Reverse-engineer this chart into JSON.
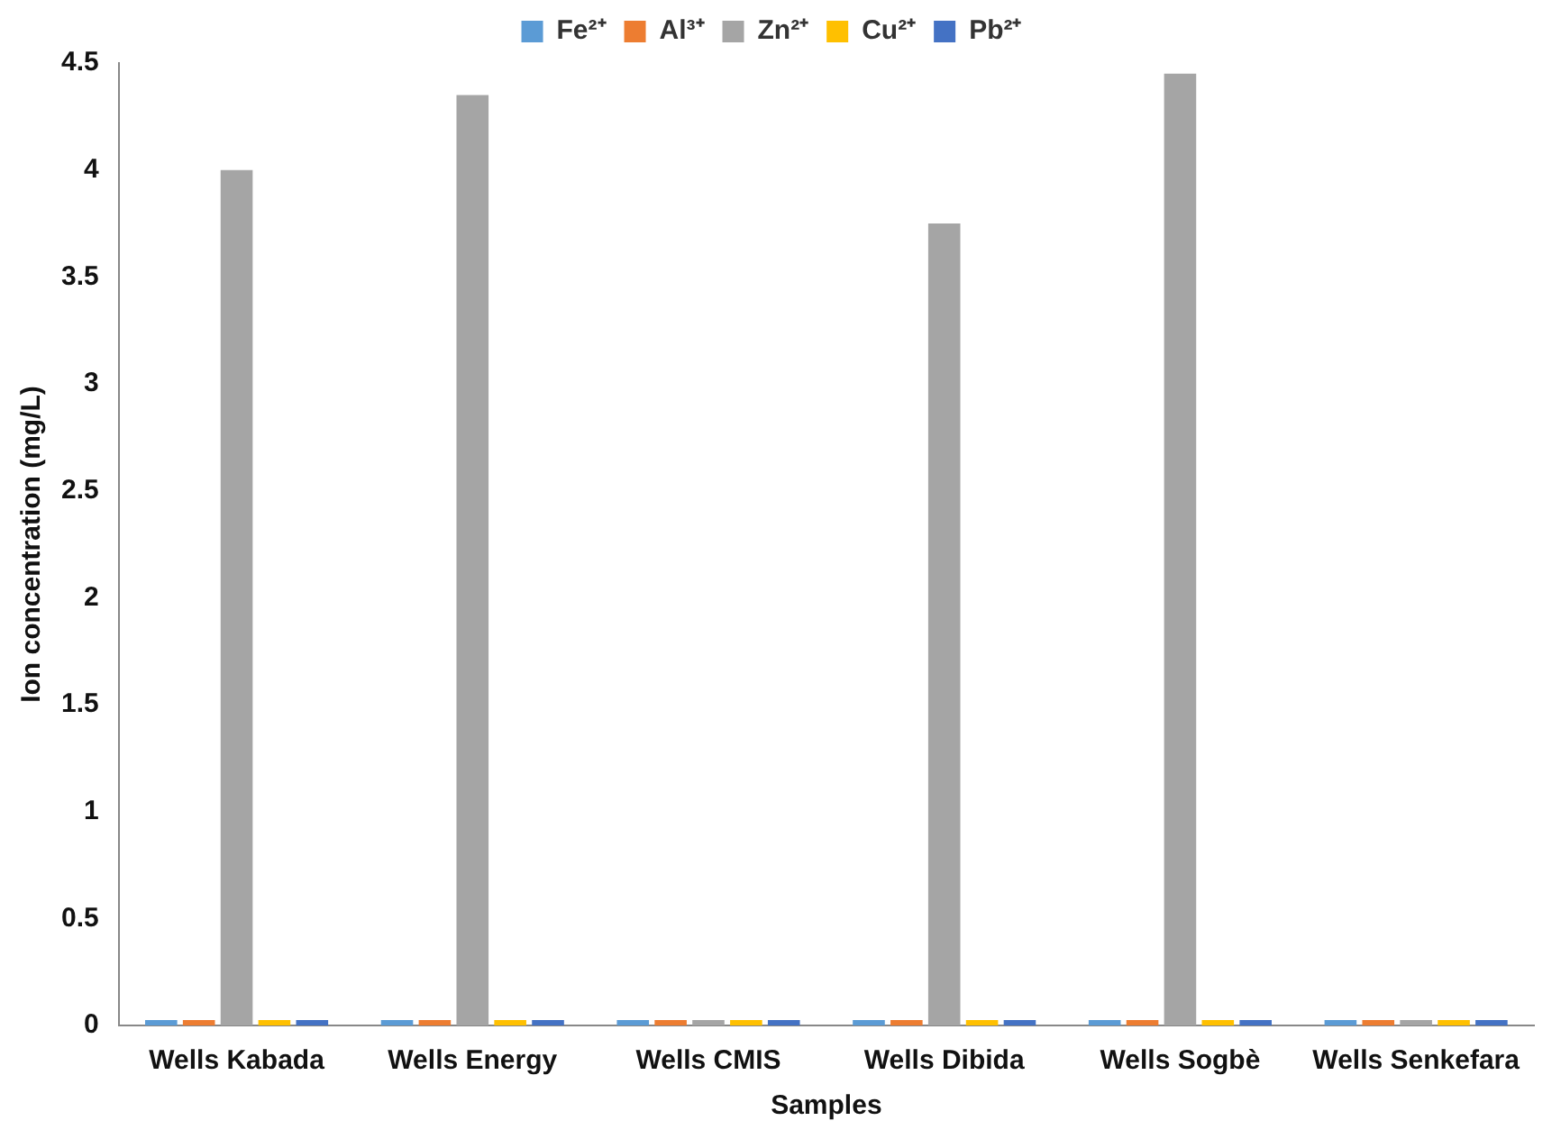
{
  "chart_data": {
    "type": "bar",
    "xlabel": "Samples",
    "ylabel": "Ion concentration (mg/L)",
    "categories": [
      "Wells Kabada",
      "Wells Energy",
      "Wells CMIS",
      "Wells Dibida",
      "Wells Sogbè",
      "Wells Senkefara"
    ],
    "series": [
      {
        "name": "Fe²⁺",
        "color": "#5b9bd5",
        "values": [
          0,
          0,
          0,
          0,
          0,
          0
        ]
      },
      {
        "name": "Al³⁺",
        "color": "#ed7d31",
        "values": [
          0,
          0,
          0,
          0,
          0,
          0
        ]
      },
      {
        "name": "Zn²⁺",
        "color": "#a5a5a5",
        "values": [
          4.0,
          4.35,
          0,
          3.75,
          4.45,
          0
        ]
      },
      {
        "name": "Cu²⁺",
        "color": "#ffc000",
        "values": [
          0,
          0,
          0,
          0,
          0,
          0
        ]
      },
      {
        "name": "Pb²⁺",
        "color": "#4472c4",
        "values": [
          0,
          0,
          0,
          0,
          0,
          0
        ]
      }
    ],
    "ylim": [
      0,
      4.5
    ],
    "yticks": [
      0,
      0.5,
      1,
      1.5,
      2,
      2.5,
      3,
      3.5,
      4,
      4.5
    ],
    "grid": false,
    "legend": "top"
  }
}
